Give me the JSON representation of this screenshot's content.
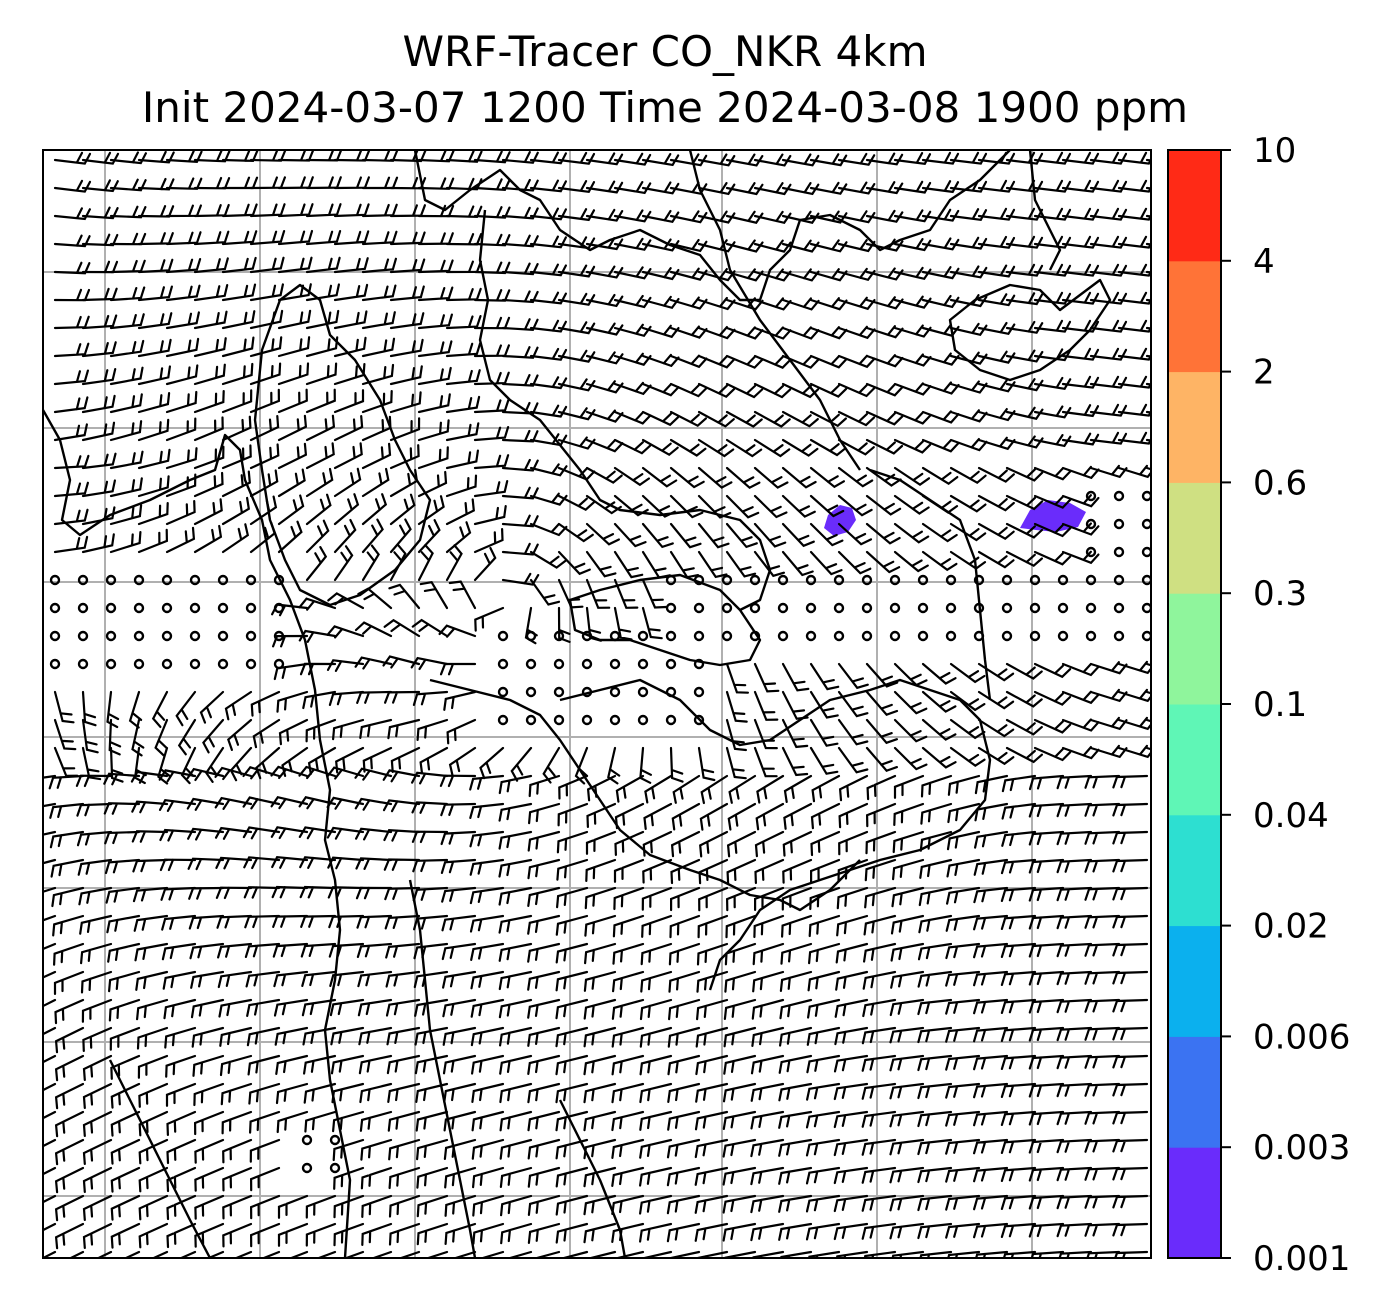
{
  "title": {
    "line1": "WRF-Tracer CO_NKR 4km",
    "line2": "Init 2024-03-07 1200 Time 2024-03-08 1900 ppm"
  },
  "colorbar": {
    "levels": [
      "0.001",
      "0.003",
      "0.006",
      "0.02",
      "0.04",
      "0.1",
      "0.3",
      "0.6",
      "2",
      "4",
      "10"
    ],
    "colors": [
      "#6a2cfb",
      "#3b73f2",
      "#0bb0ee",
      "#2ddfd1",
      "#5ff6b6",
      "#8ff59c",
      "#cfe082",
      "#feb465",
      "#ff7337",
      "#ff2a16"
    ]
  },
  "map": {
    "gridline_color": "#b0b0b0",
    "coastline_color": "#000000",
    "tracer_plume_color": "#6a2cfb",
    "icons": [
      "wind-barb-icon",
      "calm-circle-icon"
    ]
  }
}
